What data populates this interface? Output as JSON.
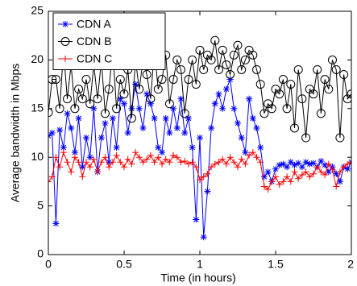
{
  "chart_data": {
    "type": "line",
    "xlabel": "Time (in hours)",
    "ylabel": "Average bandwidth in Mbps",
    "x": [
      0,
      0.025,
      0.05,
      0.075,
      0.1,
      0.125,
      0.15,
      0.175,
      0.2,
      0.225,
      0.25,
      0.275,
      0.3,
      0.325,
      0.35,
      0.375,
      0.4,
      0.425,
      0.45,
      0.475,
      0.5,
      0.525,
      0.55,
      0.575,
      0.6,
      0.625,
      0.65,
      0.675,
      0.7,
      0.725,
      0.75,
      0.775,
      0.8,
      0.825,
      0.85,
      0.875,
      0.9,
      0.925,
      0.95,
      0.975,
      1,
      1.025,
      1.05,
      1.075,
      1.1,
      1.125,
      1.15,
      1.175,
      1.2,
      1.225,
      1.25,
      1.275,
      1.3,
      1.325,
      1.35,
      1.375,
      1.4,
      1.425,
      1.45,
      1.475,
      1.5,
      1.525,
      1.55,
      1.575,
      1.6,
      1.625,
      1.65,
      1.675,
      1.7,
      1.725,
      1.75,
      1.775,
      1.8,
      1.825,
      1.85,
      1.875,
      1.9,
      1.925,
      1.95,
      1.975,
      2
    ],
    "series": [
      {
        "name": "CDN A",
        "color": "#0000ff",
        "marker": "star",
        "values": [
          12.2,
          12.5,
          3.2,
          12.8,
          11,
          14.5,
          13,
          10.5,
          14,
          9,
          12,
          10,
          15,
          8.5,
          12,
          13.5,
          9.5,
          14,
          11,
          16,
          15.5,
          12.5,
          15,
          17.5,
          15,
          13,
          16.5,
          15.5,
          14,
          11,
          10.5,
          14,
          12.5,
          15,
          13,
          16,
          12.5,
          14,
          11,
          3.6,
          12,
          1.8,
          6.5,
          13,
          15.5,
          16.5,
          15,
          17,
          18,
          15,
          13.5,
          12,
          10.5,
          16,
          14,
          13,
          11,
          8,
          8.5,
          7.5,
          8.8,
          9.2,
          9.3,
          9,
          9.5,
          9.2,
          9.4,
          9,
          9.5,
          9.3,
          9.4,
          9,
          9.6,
          9.2,
          8.5,
          9,
          8.3,
          7.5,
          9,
          8.8,
          9.5
        ]
      },
      {
        "name": "CDN B",
        "color": "#000000",
        "marker": "circle",
        "values": [
          14.6,
          18,
          18,
          15,
          21,
          16,
          19.5,
          15,
          17,
          16,
          18,
          15.5,
          19.5,
          16,
          20,
          14.5,
          17,
          21,
          15,
          18,
          16.5,
          19,
          14,
          20,
          17,
          20,
          18.5,
          16,
          21,
          17,
          18,
          20.5,
          15.5,
          18,
          20,
          19,
          14.5,
          18,
          20,
          17.5,
          21,
          19,
          20.5,
          20,
          22,
          19,
          21,
          19.5,
          18.5,
          20.5,
          21.5,
          19,
          20,
          21,
          20.5,
          19,
          17.5,
          14.5,
          15.5,
          15,
          17,
          16.5,
          18,
          15,
          17.5,
          13,
          19,
          16,
          12,
          17,
          16.5,
          19,
          14.5,
          18,
          17,
          20,
          19,
          12,
          18.5,
          16,
          16.5
        ]
      },
      {
        "name": "CDN C",
        "color": "#ff0000",
        "marker": "plus",
        "values": [
          7.5,
          8,
          10,
          9,
          10.5,
          9.5,
          8.5,
          10,
          9.5,
          8,
          9.5,
          9,
          9.8,
          8.5,
          9.5,
          10,
          9,
          9.5,
          10.2,
          9.5,
          9,
          9.8,
          9.3,
          10.5,
          10,
          9.5,
          9.8,
          10.2,
          9.5,
          10,
          9.3,
          9.8,
          9.5,
          10.2,
          10,
          9.5,
          9.6,
          9.3,
          9.5,
          9,
          7.7,
          8,
          8.3,
          9,
          9.3,
          9.5,
          9.8,
          9.3,
          10,
          9.5,
          9,
          9.8,
          9.3,
          10.2,
          10.5,
          10,
          9.5,
          7,
          6.7,
          7.5,
          8,
          7.2,
          7.5,
          8,
          7.5,
          8.5,
          7.8,
          8.2,
          8.5,
          8,
          8.3,
          9,
          8.5,
          8.2,
          9.3,
          8.7,
          7,
          8.5,
          9,
          9.3,
          9.5
        ]
      }
    ],
    "xlim": [
      0,
      2
    ],
    "xticks": [
      0,
      0.5,
      1,
      1.5,
      2
    ],
    "ylim": [
      0,
      25
    ],
    "yticks": [
      0,
      5,
      10,
      15,
      20,
      25
    ],
    "legend": "upper left",
    "grid": false
  }
}
